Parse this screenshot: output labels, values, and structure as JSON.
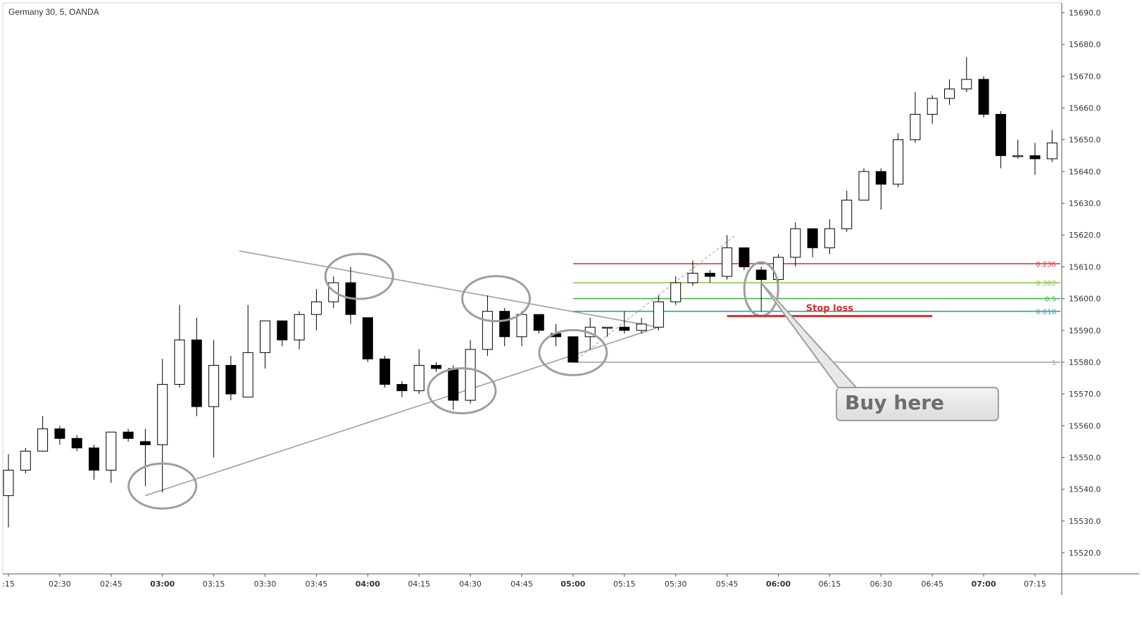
{
  "chart_title": "Germany 30, 5, OANDA",
  "chart_data": {
    "type": "candlestick",
    "title": "Germany 30, 5, OANDA",
    "x_tick_labels": [
      ":15",
      "02:30",
      "02:45",
      "03:00",
      "03:15",
      "03:30",
      "03:45",
      "04:00",
      "04:15",
      "04:30",
      "04:45",
      "05:00",
      "05:15",
      "05:30",
      "05:45",
      "06:00",
      "06:15",
      "06:30",
      "06:45",
      "07:00",
      "07:15"
    ],
    "y_tick_labels": [
      "15520.0",
      "15530.0",
      "15540.0",
      "15550.0",
      "15560.0",
      "15570.0",
      "15580.0",
      "15590.0",
      "15600.0",
      "15610.0",
      "15620.0",
      "15630.0",
      "15640.0",
      "15650.0",
      "15660.0",
      "15670.0",
      "15680.0",
      "15690.0"
    ],
    "ylim": [
      15514,
      15693
    ],
    "grid": false,
    "candles": [
      {
        "time": "02:15",
        "open": 15538,
        "high": 15551,
        "low": 15528,
        "close": 15546
      },
      {
        "time": "02:20",
        "open": 15546,
        "high": 15553,
        "low": 15545,
        "close": 15552
      },
      {
        "time": "02:25",
        "open": 15552,
        "high": 15563,
        "low": 15552,
        "close": 15559
      },
      {
        "time": "02:30",
        "open": 15559,
        "high": 15560,
        "low": 15554,
        "close": 15556
      },
      {
        "time": "02:35",
        "open": 15556,
        "high": 15557,
        "low": 15552,
        "close": 15553
      },
      {
        "time": "02:40",
        "open": 15553,
        "high": 15554,
        "low": 15543,
        "close": 15546
      },
      {
        "time": "02:45",
        "open": 15546,
        "high": 15558,
        "low": 15542,
        "close": 15558
      },
      {
        "time": "02:50",
        "open": 15558,
        "high": 15559,
        "low": 15555,
        "close": 15556
      },
      {
        "time": "02:55",
        "open": 15555,
        "high": 15559,
        "low": 15541,
        "close": 15554
      },
      {
        "time": "03:00",
        "open": 15554,
        "high": 15581,
        "low": 15539,
        "close": 15573
      },
      {
        "time": "03:05",
        "open": 15573,
        "high": 15598,
        "low": 15572,
        "close": 15587
      },
      {
        "time": "03:10",
        "open": 15587,
        "high": 15594,
        "low": 15563,
        "close": 15566
      },
      {
        "time": "03:15",
        "open": 15566,
        "high": 15587,
        "low": 15550,
        "close": 15579
      },
      {
        "time": "03:20",
        "open": 15579,
        "high": 15582,
        "low": 15568,
        "close": 15570
      },
      {
        "time": "03:25",
        "open": 15569,
        "high": 15598,
        "low": 15569,
        "close": 15583
      },
      {
        "time": "03:30",
        "open": 15583,
        "high": 15593,
        "low": 15578,
        "close": 15593
      },
      {
        "time": "03:35",
        "open": 15593,
        "high": 15593,
        "low": 15585,
        "close": 15587
      },
      {
        "time": "03:40",
        "open": 15587,
        "high": 15596,
        "low": 15584,
        "close": 15595
      },
      {
        "time": "03:45",
        "open": 15595,
        "high": 15603,
        "low": 15590,
        "close": 15599
      },
      {
        "time": "03:50",
        "open": 15599,
        "high": 15607,
        "low": 15597,
        "close": 15605
      },
      {
        "time": "03:55",
        "open": 15605,
        "high": 15610,
        "low": 15592,
        "close": 15595
      },
      {
        "time": "04:00",
        "open": 15594,
        "high": 15594,
        "low": 15580,
        "close": 15581
      },
      {
        "time": "04:05",
        "open": 15581,
        "high": 15582,
        "low": 15572,
        "close": 15573
      },
      {
        "time": "04:10",
        "open": 15573,
        "high": 15574,
        "low": 15569,
        "close": 15571
      },
      {
        "time": "04:15",
        "open": 15571,
        "high": 15584,
        "low": 15570,
        "close": 15579
      },
      {
        "time": "04:20",
        "open": 15579,
        "high": 15580,
        "low": 15577,
        "close": 15578
      },
      {
        "time": "04:25",
        "open": 15578,
        "high": 15579,
        "low": 15565,
        "close": 15568
      },
      {
        "time": "04:30",
        "open": 15568,
        "high": 15587,
        "low": 15567,
        "close": 15584
      },
      {
        "time": "04:35",
        "open": 15584,
        "high": 15601,
        "low": 15582,
        "close": 15596
      },
      {
        "time": "04:40",
        "open": 15596,
        "high": 15597,
        "low": 15585,
        "close": 15588
      },
      {
        "time": "04:45",
        "open": 15588,
        "high": 15596,
        "low": 15585,
        "close": 15595
      },
      {
        "time": "04:50",
        "open": 15595,
        "high": 15595,
        "low": 15589,
        "close": 15590
      },
      {
        "time": "04:55",
        "open": 15589,
        "high": 15592,
        "low": 15585,
        "close": 15588
      },
      {
        "time": "05:00",
        "open": 15588,
        "high": 15588,
        "low": 15580,
        "close": 15580
      },
      {
        "time": "05:05",
        "open": 15588,
        "high": 15594,
        "low": 15584,
        "close": 15591
      },
      {
        "time": "05:10",
        "open": 15591,
        "high": 15591,
        "low": 15588,
        "close": 15591
      },
      {
        "time": "05:15",
        "open": 15591,
        "high": 15596,
        "low": 15589,
        "close": 15590
      },
      {
        "time": "05:20",
        "open": 15590,
        "high": 15594,
        "low": 15589,
        "close": 15592
      },
      {
        "time": "05:25",
        "open": 15591,
        "high": 15601,
        "low": 15590,
        "close": 15599
      },
      {
        "time": "05:30",
        "open": 15599,
        "high": 15607,
        "low": 15598,
        "close": 15605
      },
      {
        "time": "05:35",
        "open": 15605,
        "high": 15612,
        "low": 15604,
        "close": 15608
      },
      {
        "time": "05:40",
        "open": 15608,
        "high": 15609,
        "low": 15605,
        "close": 15607
      },
      {
        "time": "05:45",
        "open": 15607,
        "high": 15620,
        "low": 15606,
        "close": 15616
      },
      {
        "time": "05:50",
        "open": 15616,
        "high": 15616,
        "low": 15609,
        "close": 15610
      },
      {
        "time": "05:55",
        "open": 15609,
        "high": 15610,
        "low": 15596,
        "close": 15606
      },
      {
        "time": "06:00",
        "open": 15606,
        "high": 15614,
        "low": 15604,
        "close": 15613
      },
      {
        "time": "06:05",
        "open": 15613,
        "high": 15624,
        "low": 15610,
        "close": 15622
      },
      {
        "time": "06:10",
        "open": 15622,
        "high": 15622,
        "low": 15613,
        "close": 15616
      },
      {
        "time": "06:15",
        "open": 15616,
        "high": 15625,
        "low": 15614,
        "close": 15622
      },
      {
        "time": "06:20",
        "open": 15622,
        "high": 15634,
        "low": 15621,
        "close": 15631
      },
      {
        "time": "06:25",
        "open": 15631,
        "high": 15641,
        "low": 15631,
        "close": 15640
      },
      {
        "time": "06:30",
        "open": 15640,
        "high": 15641,
        "low": 15628,
        "close": 15636
      },
      {
        "time": "06:35",
        "open": 15636,
        "high": 15652,
        "low": 15635,
        "close": 15650
      },
      {
        "time": "06:40",
        "open": 15650,
        "high": 15665,
        "low": 15649,
        "close": 15658
      },
      {
        "time": "06:45",
        "open": 15658,
        "high": 15664,
        "low": 15655,
        "close": 15663
      },
      {
        "time": "06:50",
        "open": 15663,
        "high": 15669,
        "low": 15661,
        "close": 15666
      },
      {
        "time": "06:55",
        "open": 15666,
        "high": 15676,
        "low": 15665,
        "close": 15669
      },
      {
        "time": "07:00",
        "open": 15669,
        "high": 15670,
        "low": 15657,
        "close": 15658
      },
      {
        "time": "07:05",
        "open": 15658,
        "high": 15659,
        "low": 15641,
        "close": 15645
      },
      {
        "time": "07:10",
        "open": 15645,
        "high": 15650,
        "low": 15644,
        "close": 15645
      },
      {
        "time": "07:15",
        "open": 15645,
        "high": 15649,
        "low": 15639,
        "close": 15644
      },
      {
        "time": "07:20",
        "open": 15644,
        "high": 15653,
        "low": 15643,
        "close": 15649
      }
    ],
    "fibonacci": {
      "anchor_candle_index": 33,
      "right_price_label": "1",
      "levels": [
        {
          "label": "0.236",
          "price": 15611,
          "color": "#e53935"
        },
        {
          "label": "0.382",
          "price": 15605,
          "color": "#8bc34a"
        },
        {
          "label": "0.5",
          "price": 15600,
          "color": "#4caf50"
        },
        {
          "label": "0.618",
          "price": 15596,
          "color": "#26a69a"
        },
        {
          "label": "1",
          "price": 15580,
          "color": "#9e9e9e"
        }
      ]
    },
    "trendlines": [
      {
        "name": "upper-trendline",
        "from": {
          "candle": 13.5,
          "price": 15615
        },
        "to": {
          "candle": 38,
          "price": 15591
        },
        "color": "#9e9e9e"
      },
      {
        "name": "lower-trendline",
        "from": {
          "candle": 8,
          "price": 15538
        },
        "to": {
          "candle": 38,
          "price": 15591
        },
        "color": "#9e9e9e"
      },
      {
        "name": "projection-dashed",
        "from": {
          "candle": 33,
          "price": 15580
        },
        "to": {
          "candle": 42.5,
          "price": 15620
        },
        "color": "#9e9e9e",
        "dashed": true
      }
    ],
    "highlight_circles": [
      {
        "candle": 9,
        "price": 15541
      },
      {
        "candle": 20.5,
        "price": 15607
      },
      {
        "candle": 26.5,
        "price": 15571
      },
      {
        "candle": 28.5,
        "price": 15600
      },
      {
        "candle": 33,
        "price": 15583
      },
      {
        "candle": 44,
        "price": 15603
      }
    ],
    "annotations": [
      {
        "name": "stop-loss",
        "text": "Stop loss",
        "color": "#d32f2f",
        "price": 15594.5,
        "from_candle": 42,
        "to_candle": 54
      },
      {
        "name": "buy-here",
        "text": "Buy here",
        "target_candle": 44,
        "target_price": 15605
      }
    ],
    "colors": {
      "bull_fill": "#ffffff",
      "bear_fill": "#000000",
      "candle_border": "#000000",
      "trendline": "#9e9e9e",
      "axis_text": "#333333"
    }
  }
}
